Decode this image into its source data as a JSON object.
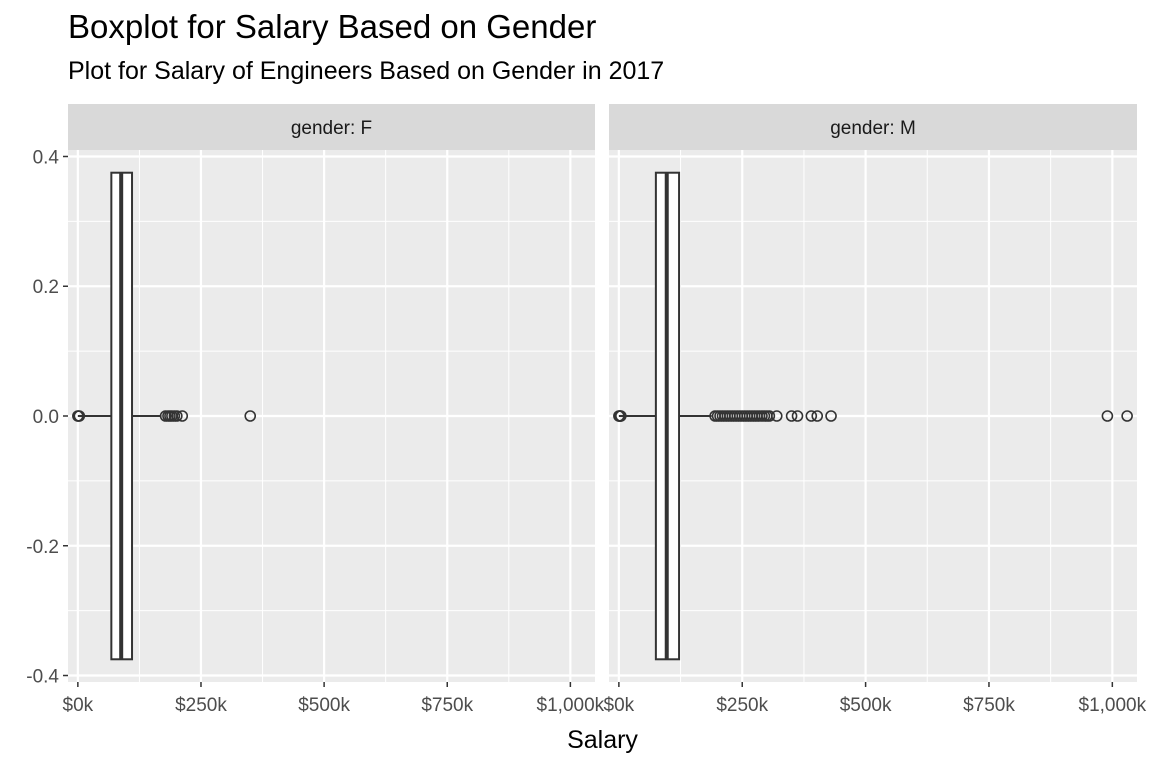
{
  "chart_data": {
    "type": "boxplot",
    "title": "Boxplot for Salary Based on Gender",
    "subtitle": "Plot for Salary of Engineers Based on Gender in 2017",
    "xlabel": "Salary",
    "ylabel": "",
    "xlim": [
      -20000,
      1050000
    ],
    "ylim": [
      -0.41,
      0.41
    ],
    "x_ticks": [
      0,
      250000,
      500000,
      750000,
      1000000
    ],
    "x_tick_labels": [
      "$0k",
      "$250k",
      "$500k",
      "$750k",
      "$1,000k"
    ],
    "y_ticks": [
      -0.4,
      -0.2,
      0.0,
      0.2,
      0.4
    ],
    "y_tick_labels": [
      "-0.4",
      "-0.2",
      "0.0",
      "0.2",
      "0.4"
    ],
    "box_y_range": [
      -0.375,
      0.375
    ],
    "grid": true,
    "facets": [
      {
        "label": "gender: F",
        "whisker_low": 0,
        "q1": 68000,
        "median": 88000,
        "q3": 110000,
        "whisker_high": 170000,
        "outliers": [
          0,
          1000,
          3000,
          178000,
          183000,
          187000,
          191000,
          196000,
          201000,
          212000,
          350000
        ]
      },
      {
        "label": "gender: M",
        "whisker_low": 0,
        "q1": 75000,
        "median": 97000,
        "q3": 122000,
        "whisker_high": 188000,
        "outliers": [
          0,
          1000,
          2000,
          3000,
          4000,
          195000,
          200000,
          205000,
          210000,
          215000,
          220000,
          225000,
          230000,
          235000,
          240000,
          245000,
          250000,
          255000,
          260000,
          265000,
          270000,
          275000,
          280000,
          285000,
          290000,
          295000,
          300000,
          305000,
          320000,
          350000,
          362000,
          390000,
          402000,
          430000,
          990000,
          1030000
        ]
      }
    ]
  },
  "colors": {
    "panel_bg": "#ebebeb",
    "strip_bg": "#d9d9d9",
    "grid": "#ffffff",
    "box_stroke": "#333333",
    "box_fill": "#ffffff"
  }
}
